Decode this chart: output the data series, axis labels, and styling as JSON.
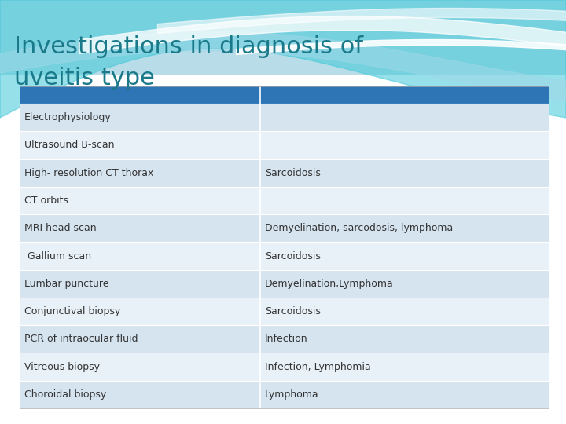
{
  "title_line1": "Investigations in diagnosis of",
  "title_line2": "uveitis type",
  "title_color": "#1a7a8a",
  "title_fontsize": 22,
  "background_color": "#ffffff",
  "header_color": "#2E75B6",
  "row_colors": [
    "#d6e4f0",
    "#e8f0f8"
  ],
  "table_rows": [
    [
      "Electrophysiology",
      ""
    ],
    [
      "Ultrasound B-scan",
      ""
    ],
    [
      "High- resolution CT thorax",
      "Sarcoidosis"
    ],
    [
      "CT orbits",
      ""
    ],
    [
      "MRI head scan",
      "Demyelination, sarcodosis, lymphoma"
    ],
    [
      " Gallium scan",
      "Sarcoidosis"
    ],
    [
      "Lumbar puncture",
      "Demyelination,Lymphoma"
    ],
    [
      "Conjunctival biopsy",
      "Sarcoidosis"
    ],
    [
      "PCR of intraocular fluid",
      "Infection"
    ],
    [
      "Vitreous biopsy",
      "Infection, Lymphomia"
    ],
    [
      "Choroidal biopsy",
      "Lymphoma"
    ]
  ],
  "col_split": 0.455,
  "text_color": "#333333",
  "text_fontsize": 9
}
